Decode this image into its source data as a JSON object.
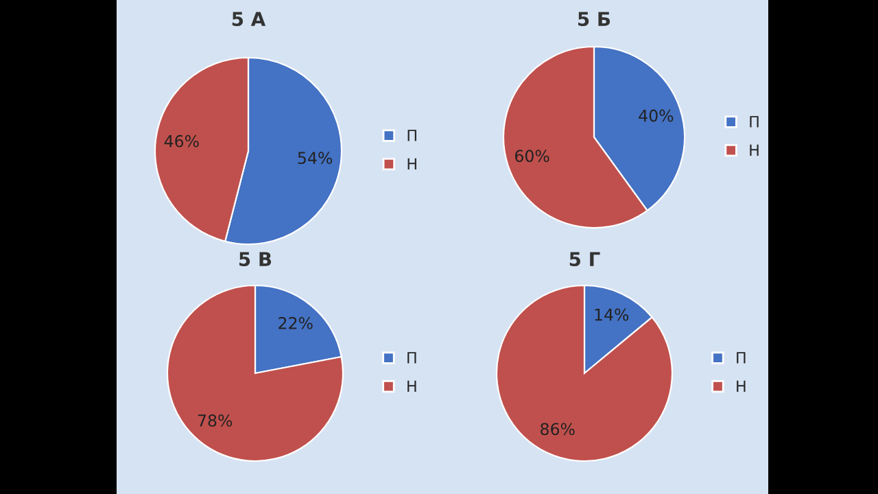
{
  "chart_data": [
    {
      "type": "pie",
      "title": "5 А",
      "categories": [
        "П",
        "Н"
      ],
      "values": [
        54,
        46
      ],
      "colors": [
        "#4472c4",
        "#c0504d"
      ],
      "value_labels": [
        "54%",
        "46%"
      ],
      "legend": "right"
    },
    {
      "type": "pie",
      "title": "5 Б",
      "categories": [
        "П",
        "Н"
      ],
      "values": [
        40,
        60
      ],
      "colors": [
        "#4472c4",
        "#c0504d"
      ],
      "value_labels": [
        "40%",
        "60%"
      ],
      "legend": "right"
    },
    {
      "type": "pie",
      "title": "5 В",
      "categories": [
        "П",
        "Н"
      ],
      "values": [
        22,
        78
      ],
      "colors": [
        "#4472c4",
        "#c0504d"
      ],
      "value_labels": [
        "22%",
        "78%"
      ],
      "legend": "right"
    },
    {
      "type": "pie",
      "title": "5 Г",
      "categories": [
        "П",
        "Н"
      ],
      "values": [
        14,
        86
      ],
      "colors": [
        "#4472c4",
        "#c0504d"
      ],
      "value_labels": [
        "14%",
        "86%"
      ],
      "legend": "right"
    }
  ]
}
